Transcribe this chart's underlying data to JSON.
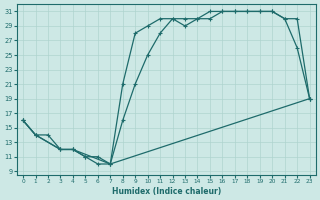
{
  "xlabel": "Humidex (Indice chaleur)",
  "ylabel": "",
  "background_color": "#cde8e5",
  "line_color": "#1e6b6b",
  "grid_color": "#afd4cf",
  "xlim": [
    -0.5,
    23.5
  ],
  "ylim": [
    8.5,
    32
  ],
  "xticks": [
    0,
    1,
    2,
    3,
    4,
    5,
    6,
    7,
    8,
    9,
    10,
    11,
    12,
    13,
    14,
    15,
    16,
    17,
    18,
    19,
    20,
    21,
    22,
    23
  ],
  "yticks": [
    9,
    11,
    13,
    15,
    17,
    19,
    21,
    23,
    25,
    27,
    29,
    31
  ],
  "line1_x": [
    0,
    1,
    2,
    3,
    4,
    5,
    6,
    7,
    8,
    9,
    10,
    11,
    12,
    13,
    14,
    15,
    16,
    17,
    18,
    19,
    20,
    21,
    22,
    23
  ],
  "line1_y": [
    16,
    14,
    14,
    12,
    12,
    11,
    10,
    10,
    21,
    28,
    29,
    30,
    30,
    30,
    30,
    31,
    31,
    31,
    31,
    31,
    31,
    30,
    26,
    19
  ],
  "line2_x": [
    0,
    1,
    3,
    4,
    7,
    8,
    9,
    10,
    11,
    12,
    13,
    14,
    15,
    16,
    17,
    18,
    19,
    20,
    21,
    22,
    23
  ],
  "line2_y": [
    16,
    14,
    12,
    12,
    10,
    16,
    21,
    25,
    28,
    30,
    29,
    30,
    30,
    31,
    31,
    31,
    31,
    31,
    30,
    30,
    19
  ],
  "line3_x": [
    0,
    1,
    3,
    4,
    5,
    6,
    7,
    23
  ],
  "line3_y": [
    16,
    14,
    12,
    12,
    11,
    11,
    10,
    19
  ]
}
